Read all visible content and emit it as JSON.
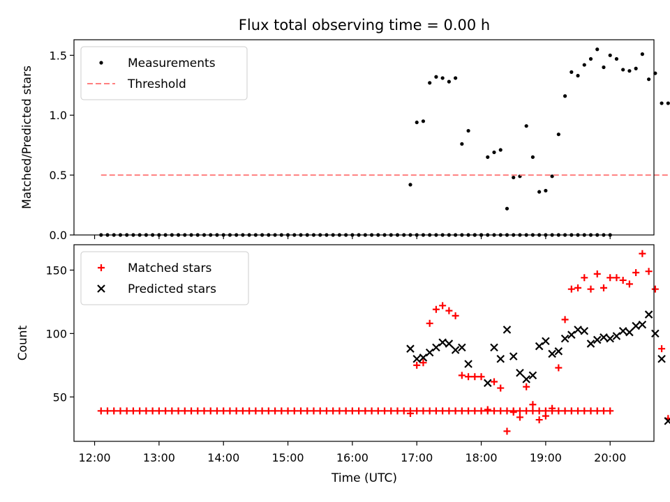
{
  "title": "Flux total observing time = 0.00 h",
  "x_axis": {
    "label": "Time (UTC)",
    "tick_labels": [
      "12:00",
      "13:00",
      "14:00",
      "15:00",
      "16:00",
      "17:00",
      "18:00",
      "19:00",
      "20:00"
    ],
    "range_hours": [
      11.68,
      20.68
    ]
  },
  "chart_data": [
    {
      "type": "scatter",
      "ylabel": "Matched/Predicted stars",
      "ylim": [
        0,
        1.63
      ],
      "yticks": [
        0.0,
        0.5,
        1.0,
        1.5
      ],
      "ytick_labels": [
        "0.0",
        "0.5",
        "1.0",
        "1.5"
      ],
      "legend_position": "upper-left",
      "series": [
        {
          "name": "Measurements",
          "kind": "points",
          "color": "#000000",
          "x_start_time": "12:06",
          "x_step_minutes": 6,
          "flat_count": 80,
          "flat_value": 0,
          "points": [
            [
              "16:54",
              0.42
            ],
            [
              "17:00",
              0.94
            ],
            [
              "17:06",
              0.95
            ],
            [
              "17:12",
              1.27
            ],
            [
              "17:18",
              1.32
            ],
            [
              "17:24",
              1.31
            ],
            [
              "17:30",
              1.28
            ],
            [
              "17:36",
              1.31
            ],
            [
              "17:42",
              0.76
            ],
            [
              "17:48",
              0.87
            ],
            [
              "17:54",
              0.0
            ],
            [
              "18:00",
              0.0
            ],
            [
              "18:06",
              0.65
            ],
            [
              "18:12",
              0.69
            ],
            [
              "18:18",
              0.71
            ],
            [
              "18:24",
              0.22
            ],
            [
              "18:30",
              0.48
            ],
            [
              "18:36",
              0.49
            ],
            [
              "18:42",
              0.91
            ],
            [
              "18:48",
              0.65
            ],
            [
              "18:54",
              0.36
            ],
            [
              "19:00",
              0.37
            ],
            [
              "19:06",
              0.49
            ],
            [
              "19:12",
              0.84
            ],
            [
              "19:18",
              1.16
            ],
            [
              "19:24",
              1.36
            ],
            [
              "19:30",
              1.33
            ],
            [
              "19:36",
              1.42
            ],
            [
              "19:42",
              1.47
            ],
            [
              "19:48",
              1.55
            ],
            [
              "19:54",
              1.4
            ],
            [
              "20:00",
              1.5
            ],
            [
              "20:06",
              1.47
            ],
            [
              "20:12",
              1.38
            ],
            [
              "20:18",
              1.37
            ],
            [
              "20:24",
              1.39
            ],
            [
              "20:30",
              1.51
            ],
            [
              "20:36",
              1.3
            ],
            [
              "20:42",
              1.35
            ],
            [
              "20:48",
              1.1
            ],
            [
              "20:54",
              1.1
            ]
          ]
        },
        {
          "name": "Threshold",
          "kind": "dashed-line",
          "color": "#ff7f7f",
          "x": [
            "12:06",
            "20:54"
          ],
          "y": [
            0.5,
            0.5
          ]
        }
      ]
    },
    {
      "type": "scatter",
      "ylabel": "Count",
      "ylim": [
        15,
        170
      ],
      "yticks": [
        50,
        100,
        150
      ],
      "ytick_labels": [
        "50",
        "100",
        "150"
      ],
      "legend_position": "upper-left",
      "series": [
        {
          "name": "Matched stars",
          "kind": "plus-markers",
          "color": "#ff0000",
          "x_start_time": "12:06",
          "x_step_minutes": 6,
          "flat_count": 80,
          "flat_value": 39,
          "points": [
            [
              "16:54",
              37
            ],
            [
              "17:00",
              75
            ],
            [
              "17:06",
              77
            ],
            [
              "17:12",
              108
            ],
            [
              "17:18",
              119
            ],
            [
              "17:24",
              122
            ],
            [
              "17:30",
              118
            ],
            [
              "17:36",
              114
            ],
            [
              "17:42",
              67
            ],
            [
              "17:48",
              66
            ],
            [
              "17:54",
              66
            ],
            [
              "18:00",
              66
            ],
            [
              "18:06",
              40
            ],
            [
              "18:12",
              62
            ],
            [
              "18:18",
              57
            ],
            [
              "18:24",
              23
            ],
            [
              "18:30",
              38
            ],
            [
              "18:36",
              34
            ],
            [
              "18:42",
              58
            ],
            [
              "18:48",
              44
            ],
            [
              "18:54",
              32
            ],
            [
              "19:00",
              35
            ],
            [
              "19:06",
              41
            ],
            [
              "19:12",
              73
            ],
            [
              "19:18",
              111
            ],
            [
              "19:24",
              135
            ],
            [
              "19:30",
              136
            ],
            [
              "19:36",
              144
            ],
            [
              "19:42",
              135
            ],
            [
              "19:48",
              147
            ],
            [
              "19:54",
              136
            ],
            [
              "20:00",
              144
            ],
            [
              "20:06",
              144
            ],
            [
              "20:12",
              142
            ],
            [
              "20:18",
              139
            ],
            [
              "20:24",
              148
            ],
            [
              "20:30",
              163
            ],
            [
              "20:36",
              149
            ],
            [
              "20:42",
              135
            ],
            [
              "20:48",
              88
            ],
            [
              "20:54",
              33
            ]
          ]
        },
        {
          "name": "Predicted stars",
          "kind": "x-markers",
          "color": "#000000",
          "points": [
            [
              "16:54",
              88
            ],
            [
              "17:00",
              80
            ],
            [
              "17:06",
              81
            ],
            [
              "17:12",
              85
            ],
            [
              "17:18",
              89
            ],
            [
              "17:24",
              93
            ],
            [
              "17:30",
              92
            ],
            [
              "17:36",
              87
            ],
            [
              "17:42",
              89
            ],
            [
              "17:48",
              76
            ],
            [
              "18:06",
              61
            ],
            [
              "18:12",
              89
            ],
            [
              "18:18",
              80
            ],
            [
              "18:24",
              103
            ],
            [
              "18:30",
              82
            ],
            [
              "18:36",
              69
            ],
            [
              "18:42",
              64
            ],
            [
              "18:48",
              67
            ],
            [
              "18:54",
              90
            ],
            [
              "19:00",
              94
            ],
            [
              "19:06",
              84
            ],
            [
              "19:12",
              86
            ],
            [
              "19:18",
              96
            ],
            [
              "19:24",
              99
            ],
            [
              "19:30",
              103
            ],
            [
              "19:36",
              102
            ],
            [
              "19:42",
              92
            ],
            [
              "19:48",
              95
            ],
            [
              "19:54",
              97
            ],
            [
              "20:00",
              96
            ],
            [
              "20:06",
              98
            ],
            [
              "20:12",
              102
            ],
            [
              "20:18",
              101
            ],
            [
              "20:24",
              106
            ],
            [
              "20:30",
              107
            ],
            [
              "20:36",
              115
            ],
            [
              "20:42",
              100
            ],
            [
              "20:48",
              80
            ],
            [
              "20:54",
              31
            ]
          ]
        }
      ]
    }
  ]
}
